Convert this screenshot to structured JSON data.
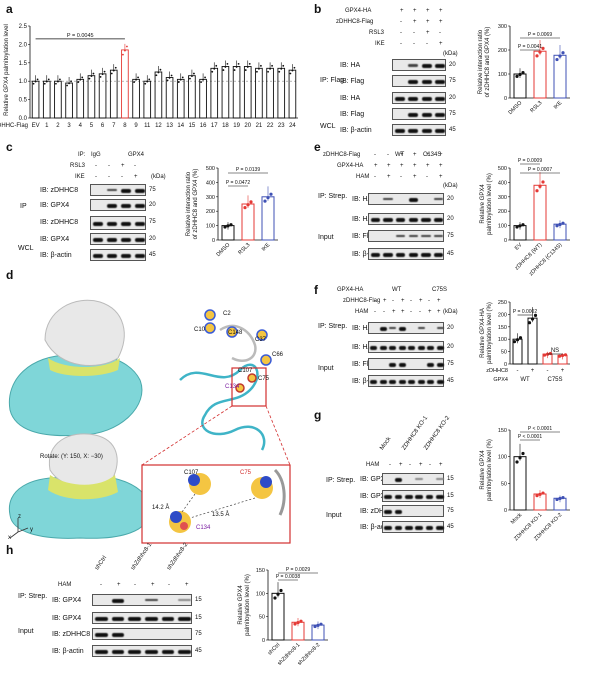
{
  "panels": {
    "a": {
      "label": "a",
      "ylabel": "Relative GPX4 palmitoylation level",
      "p": "P = 0.0045",
      "row_label": "zDHHC-Flag",
      "categories": [
        "EV",
        "1",
        "2",
        "3",
        "4",
        "5",
        "6",
        "7",
        "8",
        "9",
        "11",
        "12",
        "13",
        "14",
        "15",
        "16",
        "17",
        "18",
        "19",
        "20",
        "21",
        "22",
        "23",
        "24"
      ]
    },
    "b": {
      "label": "b",
      "rows": [
        "GPX4-HA",
        "zDHHC8-Flag",
        "RSL3",
        "IKE"
      ],
      "row_signs": [
        [
          "+",
          "+",
          "+",
          "+"
        ],
        [
          "-",
          "+",
          "+",
          "+"
        ],
        [
          "-",
          "-",
          "+",
          "-"
        ],
        [
          "-",
          "-",
          "-",
          "+"
        ]
      ],
      "ip": "IP: Flag",
      "wcl": "WCL",
      "blots": [
        "IB: HA",
        "IB: Flag",
        "IB: HA",
        "IB: Flag",
        "IB: β-actin"
      ],
      "kda": "(kDa)",
      "kda_vals": [
        "20",
        "75",
        "20",
        "75",
        "45"
      ],
      "ylabel": "Relative interaction ratio of zDHHC8 and GPX4 (%)",
      "p1": "P = 0.0069",
      "p2": "P = 0.0041",
      "xcats": [
        "DMSO",
        "RSL3",
        "IKE"
      ]
    },
    "c": {
      "label": "c",
      "ip_row": "IP:",
      "ip_cols": [
        "IgG",
        "GPX4"
      ],
      "rows": [
        "RSL3",
        "IKE"
      ],
      "row_signs": [
        [
          "-",
          "-",
          "+",
          "-"
        ],
        [
          "-",
          "-",
          "-",
          "+"
        ]
      ],
      "ip": "IP",
      "wcl": "WCL",
      "blots": [
        "IB: zDHHC8",
        "IB: GPX4",
        "IB: zDHHC8",
        "IB: GPX4",
        "IB: β-actin"
      ],
      "kda": "(kDa)",
      "kda_vals": [
        "75",
        "20",
        "75",
        "20",
        "45"
      ],
      "ylabel": "Relative interaction ratio of zDHHC8 and GPX4 (%)",
      "p1": "P = 0.0139",
      "p2": "P = 0.0472",
      "xcats": [
        "DMSO",
        "RSL3",
        "IKE"
      ]
    },
    "d": {
      "label": "d",
      "rotate": "Rotate: (Y: 150, X: −30)",
      "residues": [
        "C2",
        "C10",
        "C148",
        "C37",
        "C66",
        "C107",
        "C75",
        "C134"
      ],
      "dist1": "14.2 Å",
      "dist2": "13.5 Å",
      "axes": [
        "z",
        "x",
        "y"
      ]
    },
    "e": {
      "label": "e",
      "rows": [
        "zDHHC8-Flag",
        "GPX4-HA",
        "HAM"
      ],
      "wt": "WT",
      "mut": "C134S",
      "row_signs": [
        [
          "-",
          "-",
          "+",
          "+",
          "+",
          "+"
        ],
        [
          "+",
          "+",
          "+",
          "+",
          "+",
          "+"
        ],
        [
          "-",
          "+",
          "-",
          "+",
          "-",
          "+"
        ]
      ],
      "ip": "IP: Strep.",
      "input": "Input",
      "blots": [
        "IB: HA",
        "IB: HA",
        "IB: Flag",
        "IB: β-actin"
      ],
      "kda": "(kDa)",
      "kda_vals": [
        "20",
        "20",
        "75",
        "45"
      ],
      "ylabel": "Relative GPX4 palmitoylation level (%)",
      "p1": "P = 0.0009",
      "p2": "P = 0.0007",
      "xcats": [
        "EV",
        "zDHHC8 (WT)",
        "zDHHC8 (C134S)"
      ]
    },
    "f": {
      "label": "f",
      "rows": [
        "GPX4-HA",
        "zDHHC8-Flag",
        "HAM"
      ],
      "wt": "WT",
      "mut": "C75S",
      "row_signs": [
        [
          "-",
          "+",
          "-",
          "+",
          "-",
          "+",
          "-",
          "+"
        ],
        [
          "-",
          "-",
          "+",
          "+",
          "-",
          "-",
          "+",
          "+"
        ]
      ],
      "ip": "IP: Strep.",
      "input": "Input",
      "blots": [
        "IB: HA",
        "IB: HA",
        "IB: Flag",
        "IB: β-actin"
      ],
      "kda": "(kDa)",
      "kda_vals": [
        "20",
        "20",
        "75",
        "45"
      ],
      "ylabel": "Relative GPX4-HA palmitoylation level (%)",
      "p1": "P = 0.0002",
      "ns": "NS",
      "x_rows": [
        "zDHHC8",
        "GPX4"
      ],
      "x_signs": [
        "-",
        "+",
        "-",
        "+"
      ],
      "x_groups": [
        "WT",
        "C75S"
      ]
    },
    "g": {
      "label": "g",
      "cols": [
        "Mock",
        "ZDHHC8 KO-1",
        "ZDHHC8 KO-2"
      ],
      "ham": "HAM",
      "ham_signs": [
        "-",
        "+",
        "-",
        "+",
        "-",
        "+"
      ],
      "ip": "IP: Strep.",
      "input": "Input",
      "blots": [
        "IB: GPX4",
        "IB: GPX4",
        "IB: zDHHC8",
        "IB: β-actin"
      ],
      "kda_vals": [
        "15",
        "15",
        "75",
        "45"
      ],
      "ylabel": "Relative GPX4 palmitoylation level (%)",
      "p1": "P < 0.0001",
      "p2": "P < 0.0001",
      "xcats": [
        "Mock",
        "ZDHHC8 KO-1",
        "ZDHHC8 KO-2"
      ]
    },
    "h": {
      "label": "h",
      "cols": [
        "shCtrl",
        "shZdhhc8-1",
        "shZdhhc8-2"
      ],
      "ham": "HAM",
      "ham_signs": [
        "-",
        "+",
        "-",
        "+",
        "-",
        "+"
      ],
      "ip": "IP: Strep.",
      "input": "Input",
      "blots": [
        "IB: GPX4",
        "IB: GPX4",
        "IB: zDHHC8",
        "IB: β-actin"
      ],
      "kda_vals": [
        "15",
        "15",
        "75",
        "45"
      ],
      "ylabel": "Relative GPX4 palmitoylation level (%)",
      "p1": "P = 0.0029",
      "p2": "P = 0.0038",
      "xcats": [
        "shCtrl",
        "shZdhhc8-1",
        "shZdhhc8-2"
      ]
    }
  },
  "chart_data": [
    {
      "type": "bar",
      "panel": "a",
      "categories": [
        "EV",
        "1",
        "2",
        "3",
        "4",
        "5",
        "6",
        "7",
        "8",
        "9",
        "11",
        "12",
        "13",
        "14",
        "15",
        "16",
        "17",
        "18",
        "19",
        "20",
        "21",
        "22",
        "23",
        "24"
      ],
      "values": [
        1.0,
        1.0,
        1.0,
        0.95,
        1.05,
        1.15,
        1.2,
        1.3,
        1.85,
        1.05,
        1.0,
        1.25,
        1.1,
        1.05,
        1.15,
        1.05,
        1.35,
        1.4,
        1.4,
        1.4,
        1.35,
        1.35,
        1.35,
        1.3
      ],
      "ylim": [
        0,
        2.5
      ],
      "yticks": [
        0,
        0.5,
        1.0,
        1.5,
        2.0,
        2.5
      ],
      "ylabel": "Relative GPX4 palmitoylation level",
      "highlight": "8"
    },
    {
      "type": "bar",
      "panel": "b",
      "categories": [
        "DMSO",
        "RSL3",
        "IKE"
      ],
      "values": [
        100,
        195,
        178
      ],
      "ylim": [
        0,
        300
      ],
      "yticks": [
        0,
        100,
        200,
        300
      ],
      "colors": [
        "#111111",
        "#e53935",
        "#3f51b5"
      ]
    },
    {
      "type": "bar",
      "panel": "c",
      "categories": [
        "DMSO",
        "RSL3",
        "IKE"
      ],
      "values": [
        100,
        250,
        300
      ],
      "ylim": [
        0,
        500
      ],
      "yticks": [
        0,
        100,
        200,
        300,
        400,
        500
      ],
      "colors": [
        "#111111",
        "#e53935",
        "#3f51b5"
      ]
    },
    {
      "type": "bar",
      "panel": "e",
      "categories": [
        "EV",
        "zDHHC8 (WT)",
        "zDHHC8 (C134S)"
      ],
      "values": [
        100,
        380,
        110
      ],
      "ylim": [
        0,
        500
      ],
      "yticks": [
        0,
        100,
        200,
        300,
        400,
        500
      ],
      "colors": [
        "#111111",
        "#e53935",
        "#3f51b5"
      ]
    },
    {
      "type": "bar",
      "panel": "f",
      "categories": [
        "WT -",
        "WT +",
        "C75S -",
        "C75S +"
      ],
      "values": [
        100,
        185,
        40,
        35
      ],
      "ylim": [
        0,
        250
      ],
      "yticks": [
        0,
        50,
        100,
        150,
        200,
        250
      ],
      "colors": [
        "#111111",
        "#111111",
        "#e53935",
        "#e53935"
      ]
    },
    {
      "type": "bar",
      "panel": "g",
      "categories": [
        "Mock",
        "ZDHHC8 KO-1",
        "ZDHHC8 KO-2"
      ],
      "values": [
        100,
        30,
        22
      ],
      "ylim": [
        0,
        150
      ],
      "yticks": [
        0,
        50,
        100,
        150
      ],
      "colors": [
        "#111111",
        "#e53935",
        "#3f51b5"
      ]
    },
    {
      "type": "bar",
      "panel": "h",
      "categories": [
        "shCtrl",
        "shZdhhc8-1",
        "shZdhhc8-2"
      ],
      "values": [
        100,
        38,
        32
      ],
      "ylim": [
        0,
        150
      ],
      "yticks": [
        0,
        50,
        100,
        150
      ],
      "colors": [
        "#111111",
        "#e53935",
        "#3f51b5"
      ]
    }
  ]
}
